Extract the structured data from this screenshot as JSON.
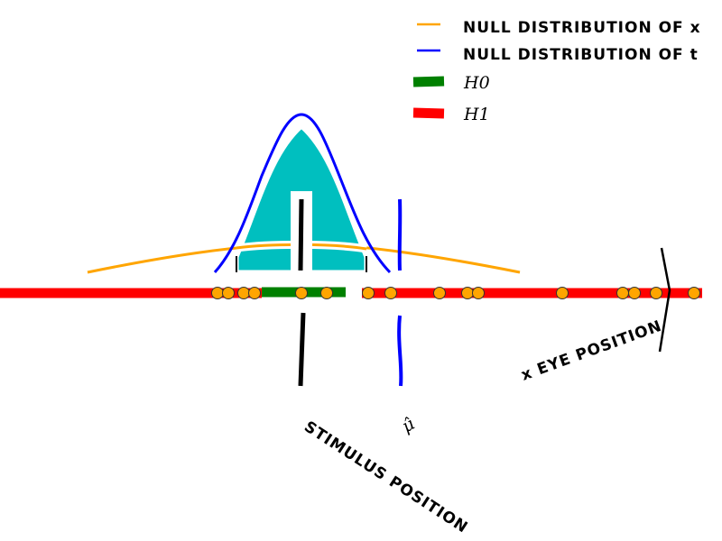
{
  "legend": {
    "items": [
      {
        "label": "NULL DISTRIBUTION OF x",
        "color": "#ffa500"
      },
      {
        "label": "NULL DISTRIBUTION OF t",
        "color": "#0000ff"
      },
      {
        "label": "H0",
        "color": "#008000"
      },
      {
        "label": "H1",
        "color": "#ff0000"
      }
    ]
  },
  "labels": {
    "stimulus_position": "STIMULUS POSITION",
    "mu_hat": "μ̂",
    "eye_position": "x EYE POSITION"
  },
  "colors": {
    "null_x": "#ffa500",
    "null_t": "#0000ff",
    "fill": "#00bfbf",
    "h0": "#008000",
    "h1": "#ff0000",
    "samples": "#ffa500"
  }
}
